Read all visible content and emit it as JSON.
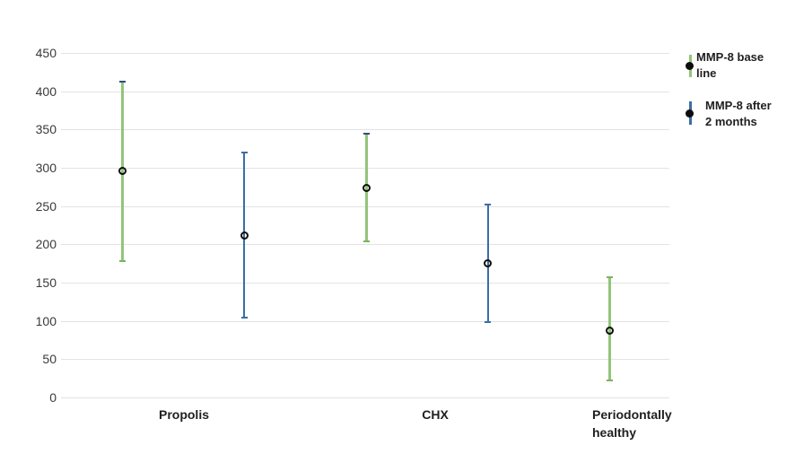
{
  "chart_data": {
    "type": "scatter-errorbar",
    "title": "",
    "y_axis": {
      "min": 0,
      "max": 450,
      "step": 50,
      "ticks": [
        0,
        50,
        100,
        150,
        200,
        250,
        300,
        350,
        400,
        450
      ]
    },
    "series": [
      {
        "name": "MMP-8 base line",
        "legend_lines": [
          "MMP-8 base",
          "line"
        ],
        "color": "#92c57a",
        "cap_color": "#7ab360"
      },
      {
        "name": "MMP-8 after 2 months",
        "legend_lines": [
          "MMP-8 after",
          "2 months"
        ],
        "color": "#3b6ea5",
        "cap_color": "#3b6ea5"
      }
    ],
    "points": [
      {
        "group": "Propolis",
        "series": 0,
        "slot": 0,
        "mean": 296,
        "upper": 412,
        "lower": 178,
        "top_cap_color": "#2e4d7b"
      },
      {
        "group": "Propolis",
        "series": 1,
        "slot": 1,
        "mean": 211,
        "upper": 320,
        "lower": 104
      },
      {
        "group": "CHX",
        "series": 0,
        "slot": 2,
        "mean": 274,
        "upper": 344,
        "lower": 204,
        "top_cap_color": "#2e4d7b"
      },
      {
        "group": "CHX",
        "series": 1,
        "slot": 3,
        "mean": 175,
        "upper": 252,
        "lower": 98
      },
      {
        "group": "Periodontally healthy",
        "series": 0,
        "slot": 4,
        "mean": 87,
        "upper": 157,
        "lower": 22
      }
    ],
    "x_labels": [
      {
        "lines": [
          "Propolis"
        ],
        "x": 205,
        "align": "center"
      },
      {
        "lines": [
          "CHX"
        ],
        "x": 485,
        "align": "center"
      },
      {
        "lines": [
          "Periodontally",
          "healthy"
        ],
        "x": 660,
        "align": "left"
      }
    ],
    "legend": {
      "position": "right"
    },
    "layout_hints": {
      "grid": true,
      "legend_position": "right",
      "ylim": [
        0,
        450
      ]
    },
    "colors": {
      "gridline": "#e3e3e3",
      "marker": "#0d0d0d",
      "axis_text": "#3a3a3a",
      "label_text": "#1f1f1f",
      "background": "#ffffff"
    }
  }
}
